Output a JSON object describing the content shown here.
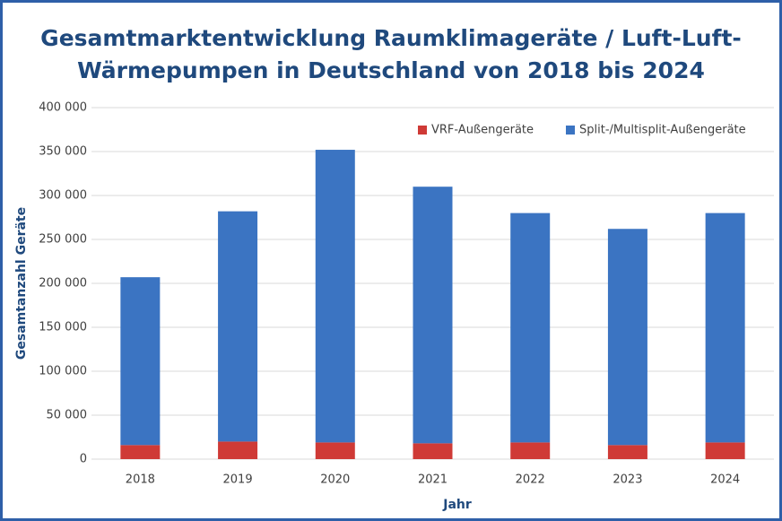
{
  "chart_data": {
    "type": "stacked_bar",
    "title": [
      "Gesamtmarktentwicklung Raumklimageräte / Luft-Luft-",
      "Wärmepumpen in Deutschland von 2018 bis 2024"
    ],
    "x_label": "Jahr",
    "y_label": "Gesamtanzahl Geräte",
    "categories": [
      "2018",
      "2019",
      "2020",
      "2021",
      "2022",
      "2023",
      "2024"
    ],
    "series": [
      {
        "name": "VRF-Außengeräte",
        "color": "#cf3a36",
        "values": [
          16000,
          20000,
          19000,
          18000,
          19000,
          16000,
          19000
        ]
      },
      {
        "name": "Split-/Multisplit-Außengeräte",
        "color": "#3b74c2",
        "values": [
          191000,
          262000,
          333000,
          292000,
          261000,
          246000,
          261000
        ]
      }
    ],
    "ylim": [
      0,
      400000
    ],
    "yticks": [
      0,
      {
        "value": 50000,
        "label": "50 000"
      },
      {
        "value": 100000,
        "label": "100 000"
      },
      {
        "value": 150000,
        "label": "150 000"
      },
      {
        "value": 200000,
        "label": "200 000"
      },
      {
        "value": 250000,
        "label": "250 000"
      },
      {
        "value": 300000,
        "label": "300 000"
      },
      {
        "value": 350000,
        "label": "350 000"
      },
      {
        "value": 400000,
        "label": "400 000"
      }
    ],
    "grid": true,
    "legend": "top-right"
  }
}
